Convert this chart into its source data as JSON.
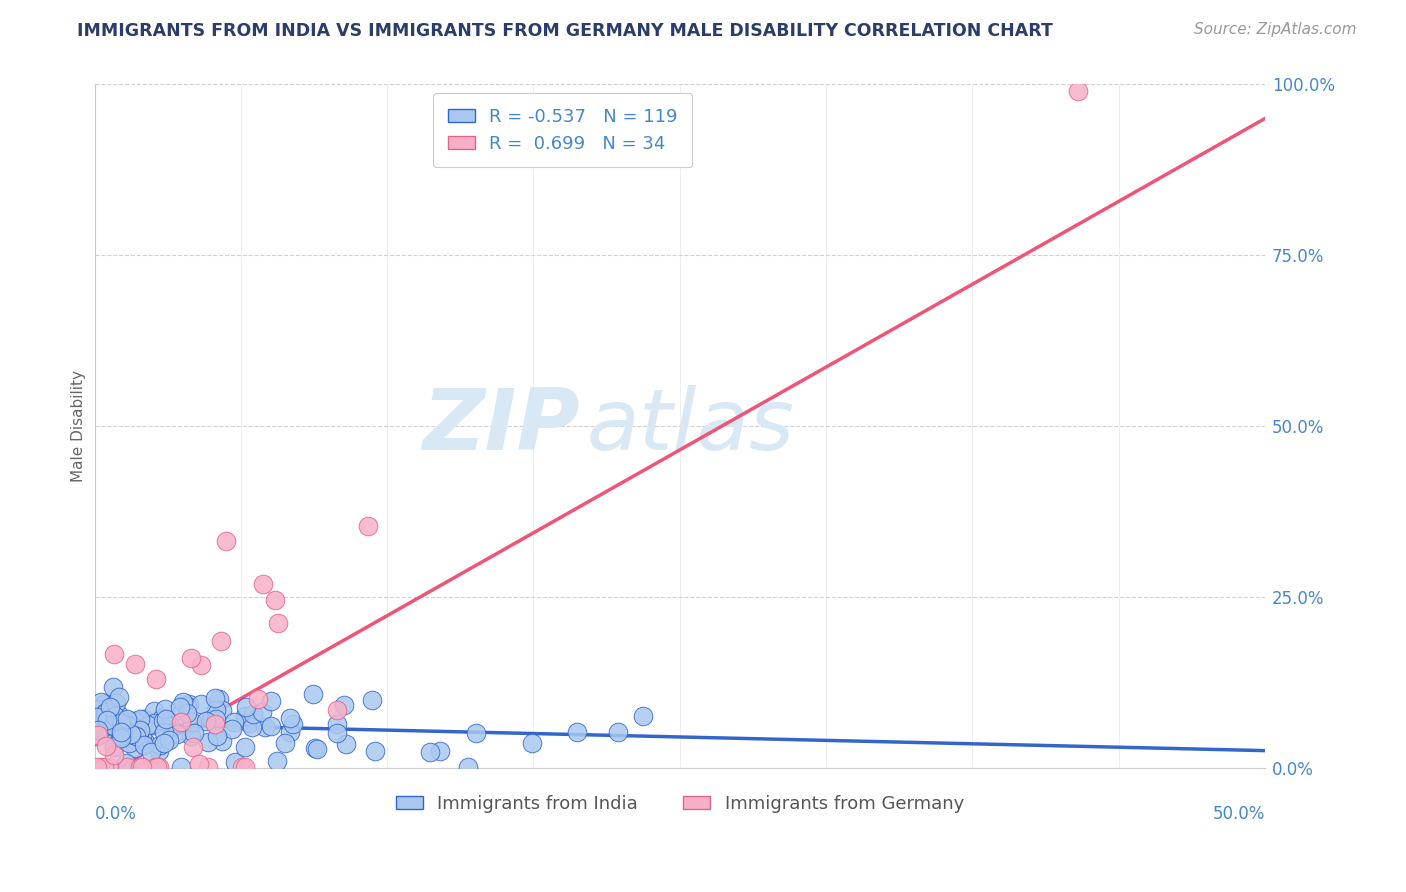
{
  "title": "IMMIGRANTS FROM INDIA VS IMMIGRANTS FROM GERMANY MALE DISABILITY CORRELATION CHART",
  "source": "Source: ZipAtlas.com",
  "legend_india": "Immigrants from India",
  "legend_germany": "Immigrants from Germany",
  "ylabel": "Male Disability",
  "R_india": -0.537,
  "N_india": 119,
  "R_germany": 0.699,
  "N_germany": 34,
  "india_face_color": "#aac8f0",
  "india_edge_color": "#3366cc",
  "germany_face_color": "#f8b0c8",
  "germany_edge_color": "#dd6688",
  "india_line_color": "#3366cc",
  "germany_line_color": "#ee5577",
  "title_color": "#2b3d6b",
  "source_color": "#999999",
  "axis_label_color": "#4488cc",
  "watermark_color": "#d8e8f5",
  "background_color": "#ffffff",
  "grid_color": "#cccccc",
  "xlim": [
    0.0,
    0.5
  ],
  "ylim": [
    0.0,
    1.0
  ],
  "right_ytick_values": [
    0.0,
    0.25,
    0.5,
    0.75,
    1.0
  ],
  "right_ytick_labels": [
    "0.0%",
    "25.0%",
    "50.0%",
    "75.0%",
    "100.0%"
  ],
  "germany_trend_x0": 0.0,
  "germany_trend_y0": -0.02,
  "germany_trend_x1": 0.5,
  "germany_trend_y1": 0.95,
  "india_trend_x0": 0.0,
  "india_trend_y0": 0.065,
  "india_trend_x1": 0.5,
  "india_trend_y1": 0.025
}
